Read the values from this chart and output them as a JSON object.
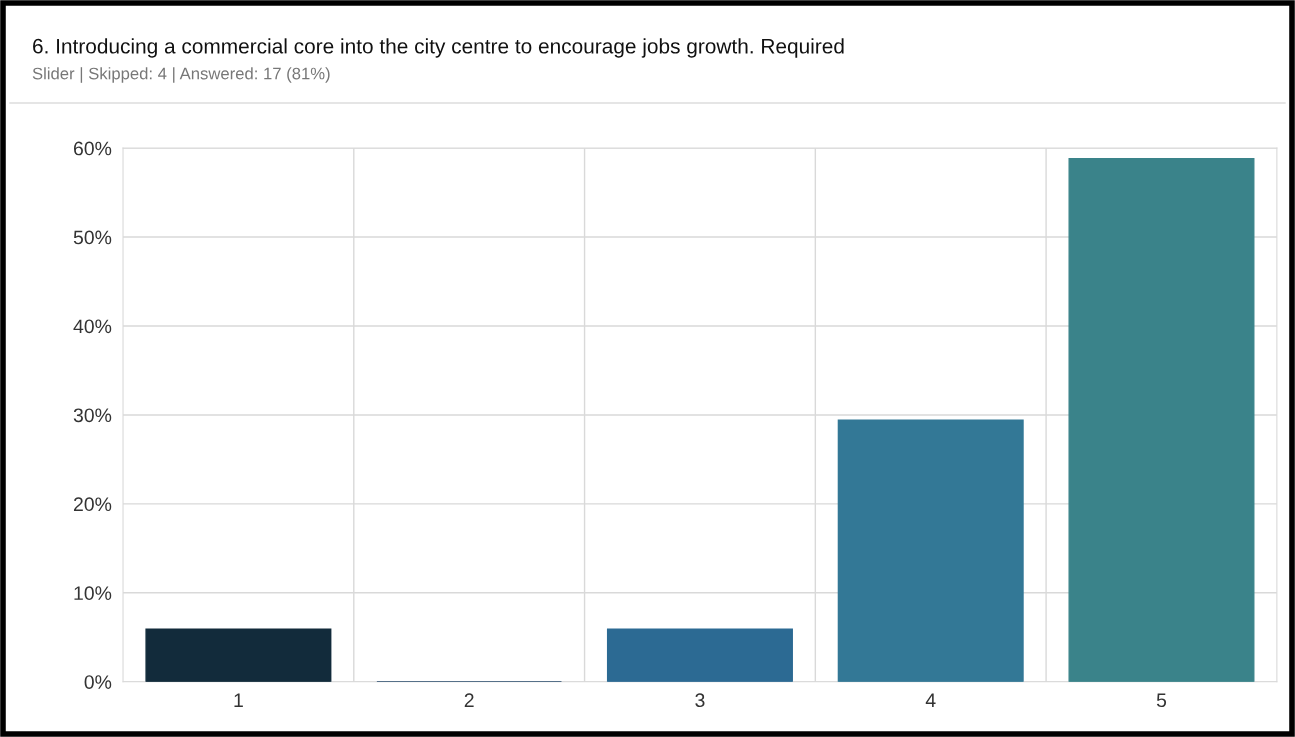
{
  "chart_data": {
    "type": "bar",
    "title": "6. Introducing a commercial core into the city centre to encourage jobs growth. Required",
    "subtitle": "Slider | Skipped: 4 | Answered: 17 (81%)",
    "categories": [
      "1",
      "2",
      "3",
      "4",
      "5"
    ],
    "values": [
      5.9,
      0,
      5.9,
      29.4,
      58.8
    ],
    "colors": [
      "#122b3b",
      "#2a4d6e",
      "#2c6a93",
      "#337896",
      "#3a838a"
    ],
    "ylim": [
      0,
      60
    ],
    "yticks": [
      {
        "value": 0,
        "label": "0%"
      },
      {
        "value": 10,
        "label": "10%"
      },
      {
        "value": 20,
        "label": "20%"
      },
      {
        "value": 30,
        "label": "30%"
      },
      {
        "value": 40,
        "label": "40%"
      },
      {
        "value": 50,
        "label": "50%"
      },
      {
        "value": 60,
        "label": "60%"
      }
    ],
    "grid": true
  }
}
